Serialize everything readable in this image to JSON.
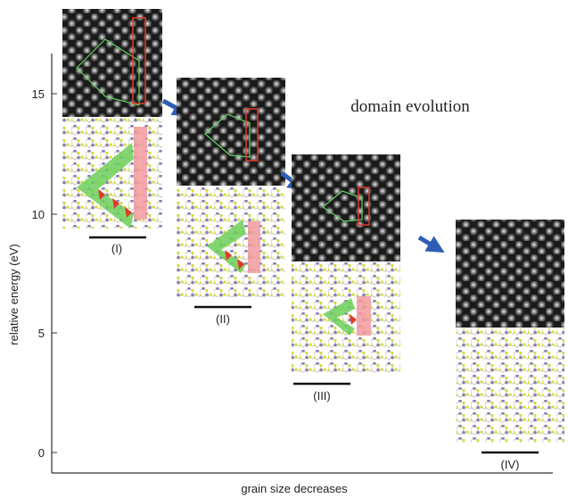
{
  "figure": {
    "title": "domain evolution",
    "xlabel": "grain size decreases",
    "ylabel": "relative energy (eV)",
    "yticks": [
      "0",
      "5",
      "10",
      "15"
    ],
    "stages": [
      {
        "id": "I",
        "label": "(I)"
      },
      {
        "id": "II",
        "label": "(II)"
      },
      {
        "id": "III",
        "label": "(III)"
      },
      {
        "id": "IV",
        "label": "(IV)"
      }
    ]
  },
  "colors": {
    "arrow": "#2f5fb4",
    "stm_background": "#1a1a1a",
    "grain_outline": "#5fd35f",
    "boundary_box": "#e23a2a",
    "boundary_fill": "#f29aa0",
    "domain_fill": "#6ccf5a",
    "atom_metal": "#8a7fb0",
    "atom_chalcogen": "#d7dc3a"
  }
}
